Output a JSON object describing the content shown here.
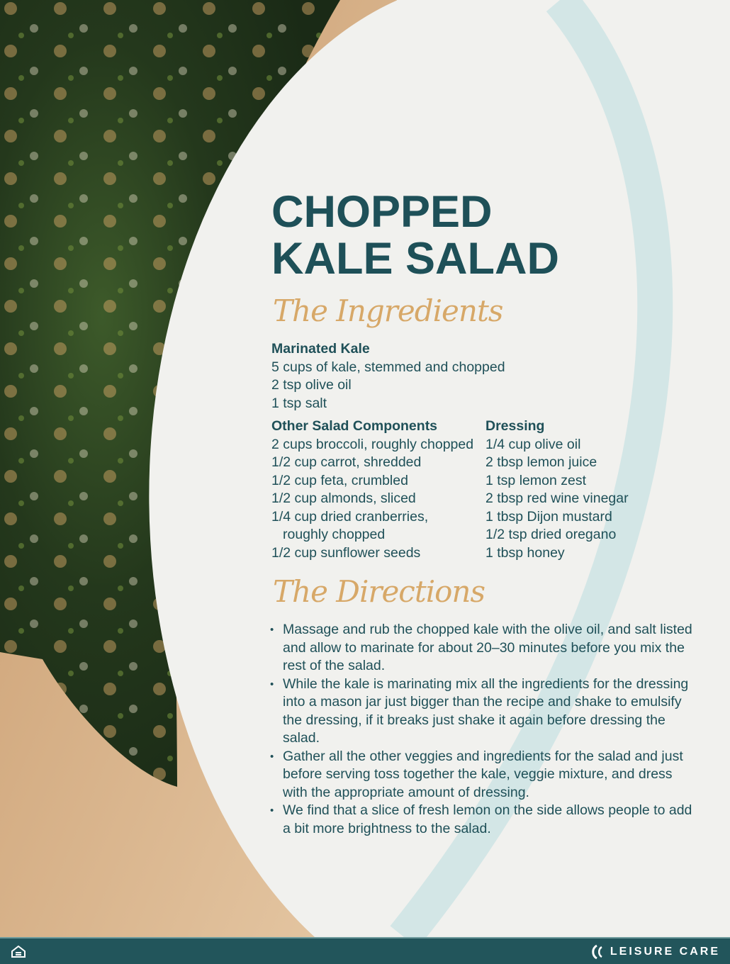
{
  "title": {
    "line1": "CHOPPED",
    "line2": "KALE SALAD"
  },
  "ingredients_heading": "The Ingredients",
  "marinated_kale": {
    "heading": "Marinated Kale",
    "items": [
      "5 cups of kale, stemmed and chopped",
      "2 tsp olive oil",
      "1 tsp salt"
    ]
  },
  "other_components": {
    "heading": "Other Salad Components",
    "items": [
      "2 cups broccoli, roughly chopped",
      "1/2 cup carrot, shredded",
      "1/2 cup feta, crumbled",
      "1/2 cup almonds, sliced",
      "1/4 cup dried cranberries,",
      "roughly chopped",
      "1/2 cup sunflower seeds"
    ]
  },
  "dressing": {
    "heading": "Dressing",
    "items": [
      "1/4 cup olive oil",
      "2 tbsp lemon juice",
      "1 tsp lemon zest",
      "2 tbsp red wine vinegar",
      "1 tbsp Dijon mustard",
      "1/2 tsp dried oregano",
      "1 tbsp honey"
    ]
  },
  "directions_heading": "The Directions",
  "directions": [
    "Massage and rub the chopped kale with the olive oil, and salt listed and allow to marinate for about 20–30 minutes before you mix the rest of the salad.",
    "While the kale is marinating mix all the ingredients for the dressing into a mason jar just bigger than the recipe and shake to emulsify the dressing, if it breaks just shake it again before dressing the salad.",
    "Gather all the other veggies and ingredients for the salad and just before serving toss together the kale, veggie mixture, and dress with the appropriate amount of dressing.",
    "We find that a slice of fresh lemon on the side allows people to add a bit more brightness to the salad."
  ],
  "footer": {
    "brand": "LEISURE CARE",
    "left_icon": "equal-housing-icon"
  },
  "colors": {
    "teal": "#1f5058",
    "tan": "#d7a868",
    "footer": "#22555b",
    "cream": "#f1f1ee",
    "arc": "#d3e6e6"
  }
}
